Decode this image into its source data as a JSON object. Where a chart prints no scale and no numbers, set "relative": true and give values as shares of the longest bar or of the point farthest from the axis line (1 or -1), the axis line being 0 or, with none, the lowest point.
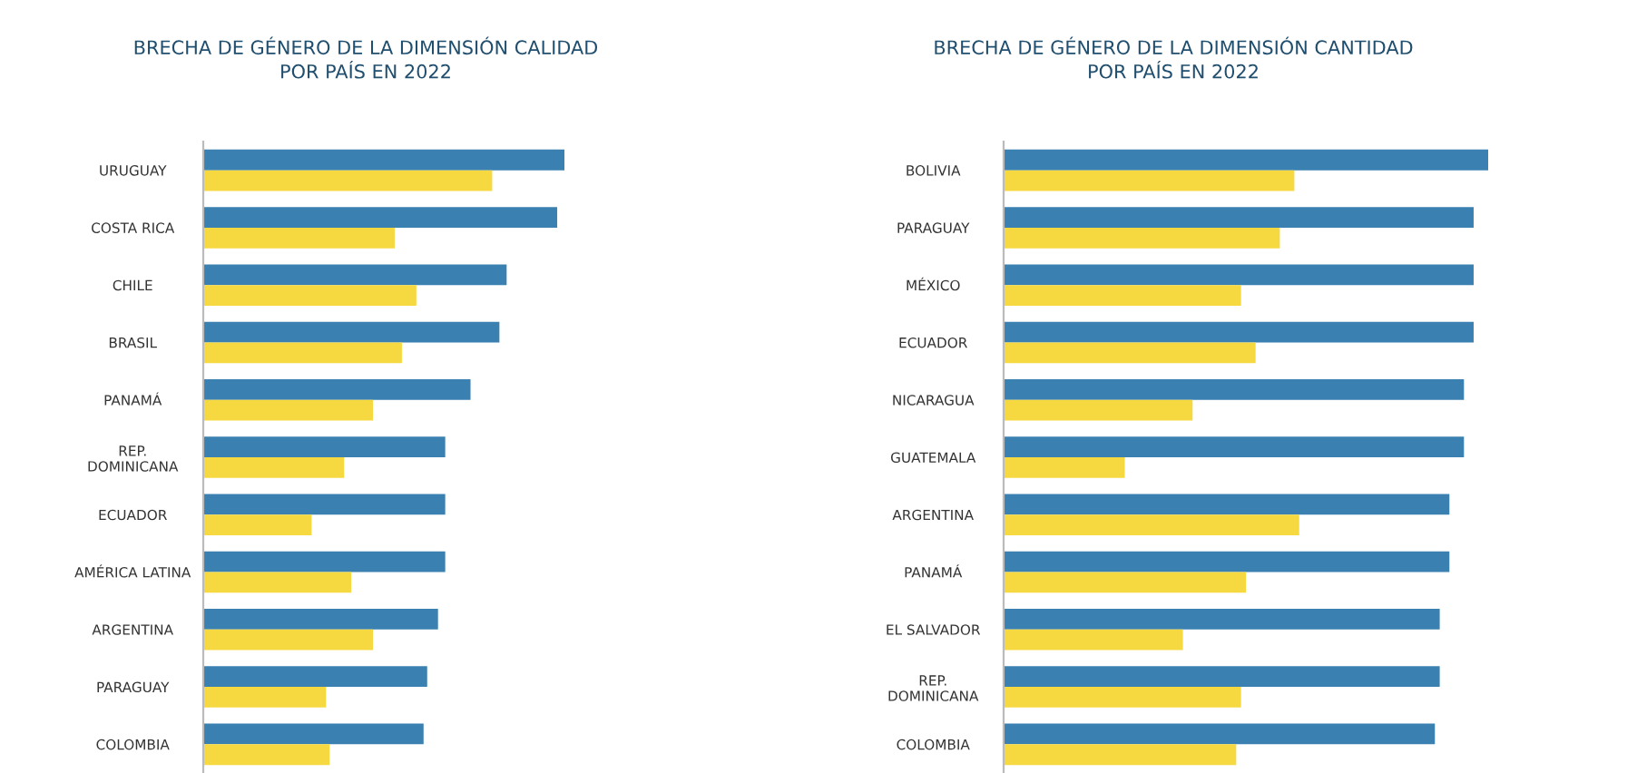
{
  "chart_data": [
    {
      "type": "bar",
      "orientation": "horizontal",
      "relative": true,
      "title": "BRECHA DE GÉNERO DE LA DIMENSIÓN CALIDAD\nPOR PAÍS EN 2022",
      "grid": false,
      "legend": false,
      "categories": [
        "URUGUAY",
        "COSTA RICA",
        "CHILE",
        "BRASIL",
        "PANAMÁ",
        "REP.\nDOMINICANA",
        "ECUADOR",
        "AMÉRICA LATINA",
        "ARGENTINA",
        "PARAGUAY",
        "COLOMBIA"
      ],
      "series": [
        {
          "color": "#3a80b1",
          "values": [
            1,
            0.98,
            0.84,
            0.82,
            0.74,
            0.67,
            0.67,
            0.67,
            0.65,
            0.62,
            0.61
          ]
        },
        {
          "color": "#f6d840",
          "values": [
            0.8,
            0.53,
            0.59,
            0.55,
            0.47,
            0.39,
            0.3,
            0.41,
            0.47,
            0.34,
            0.35
          ]
        }
      ]
    },
    {
      "type": "bar",
      "orientation": "horizontal",
      "relative": true,
      "title": "BRECHA DE GÉNERO DE LA DIMENSIÓN CANTIDAD\nPOR PAÍS EN 2022",
      "grid": false,
      "legend": false,
      "categories": [
        "BOLIVIA",
        "PARAGUAY",
        "MÉXICO",
        "ECUADOR",
        "NICARAGUA",
        "GUATEMALA",
        "ARGENTINA",
        "PANAMÁ",
        "EL SALVADOR",
        "REP.\nDOMINICANA",
        "COLOMBIA"
      ],
      "series": [
        {
          "color": "#3a80b1",
          "values": [
            1,
            0.97,
            0.97,
            0.97,
            0.95,
            0.95,
            0.92,
            0.92,
            0.9,
            0.9,
            0.89
          ]
        },
        {
          "color": "#f6d840",
          "values": [
            0.6,
            0.57,
            0.49,
            0.52,
            0.39,
            0.25,
            0.61,
            0.5,
            0.37,
            0.49,
            0.48
          ]
        }
      ]
    }
  ]
}
